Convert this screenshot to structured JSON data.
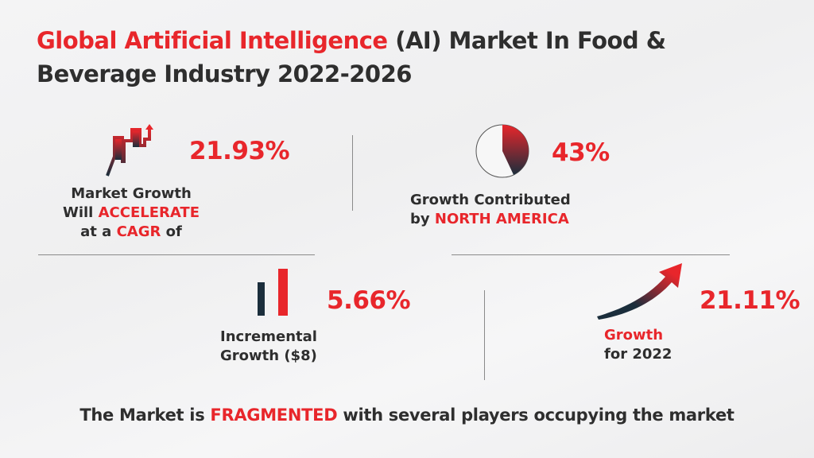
{
  "title": {
    "line1_highlight": "Global Artificial Intelligence",
    "line1_rest": " (AI) Market In Food &",
    "line2": "Beverage Industry 2022-2026"
  },
  "stats": [
    {
      "value": "21.93%",
      "icon": "chart-growth-icon",
      "label_lines": [
        [
          "Market Growth"
        ],
        [
          "Will ",
          "ACCELERATE"
        ],
        [
          "at a ",
          "CAGR",
          " of"
        ]
      ]
    },
    {
      "value": "43%",
      "icon": "pie-chart-icon",
      "label_line1": "Growth Contributed",
      "label_line2_pre": "by ",
      "label_line2_highlight": "NORTH AMERICA",
      "pie_share_percent": 43
    },
    {
      "value": "5.66%",
      "icon": "bar-chart-icon",
      "label_line1": "Incremental",
      "label_line2": "Growth ($8)"
    },
    {
      "value": "21.11%",
      "icon": "trend-arrow-icon",
      "label_line1": "Growth",
      "label_line2": "for 2022"
    }
  ],
  "s1": {
    "l1": "Market Growth",
    "l2a": "Will ",
    "l2b": "ACCELERATE",
    "l3a": "at a ",
    "l3b": "CAGR",
    "l3c": " of"
  },
  "footer": {
    "pre": "The Market is ",
    "highlight": "FRAGMENTED",
    "post": " with several players occupying the market"
  },
  "colors": {
    "accent": "#e8262b",
    "text": "#2e2e2e",
    "navy": "#1b2e3c"
  }
}
